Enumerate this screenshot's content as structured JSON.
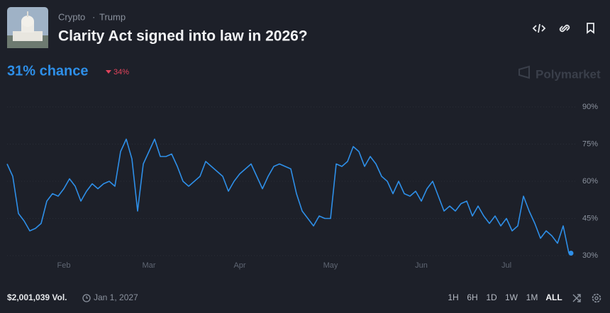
{
  "header": {
    "tags": [
      "Crypto",
      "Trump"
    ],
    "title": "Clarity Act signed into law in 2026?",
    "chance": "31% chance",
    "change": "34%",
    "brand": "Polymarket"
  },
  "chart_data": {
    "type": "line",
    "color": "#2e8fe8",
    "categories": [
      null,
      null,
      null,
      null,
      null,
      null,
      null,
      null,
      null,
      null,
      "Feb",
      null,
      null,
      null,
      null,
      null,
      null,
      null,
      null,
      null,
      null,
      null,
      null,
      null,
      null,
      "Mar",
      null,
      null,
      null,
      null,
      null,
      null,
      null,
      null,
      null,
      null,
      null,
      null,
      null,
      null,
      null,
      "Apr",
      null,
      null,
      null,
      null,
      null,
      null,
      null,
      null,
      null,
      null,
      null,
      null,
      null,
      null,
      null,
      "May",
      null,
      null,
      null,
      null,
      null,
      null,
      null,
      null,
      null,
      null,
      null,
      null,
      null,
      null,
      null,
      "Jun",
      null,
      null,
      null,
      null,
      null,
      null,
      null,
      null,
      null,
      null,
      null,
      null,
      null,
      null,
      "Jul",
      null,
      null,
      null,
      null,
      null,
      null,
      null,
      null,
      null,
      null,
      null
    ],
    "values": [
      67,
      62,
      47,
      44,
      40,
      41,
      43,
      52,
      55,
      54,
      57,
      61,
      58,
      52,
      56,
      59,
      57,
      59,
      60,
      58,
      72,
      77,
      69,
      48,
      67,
      72,
      77,
      70,
      70,
      71,
      66,
      60,
      58,
      60,
      62,
      68,
      66,
      64,
      62,
      56,
      60,
      63,
      65,
      67,
      62,
      57,
      62,
      66,
      67,
      66,
      65,
      55,
      48,
      45,
      42,
      46,
      45,
      45,
      67,
      66,
      68,
      74,
      72,
      66,
      70,
      67,
      62,
      60,
      55,
      60,
      55,
      54,
      56,
      52,
      57,
      60,
      54,
      48,
      50,
      48,
      51,
      52,
      46,
      50,
      46,
      43,
      46,
      42,
      45,
      40,
      42,
      54,
      48,
      43,
      37,
      40,
      38,
      35,
      42,
      31
    ],
    "ylim": [
      27,
      93
    ],
    "yticks": [
      {
        "value": 30,
        "label": "30%"
      },
      {
        "value": 45,
        "label": "45%"
      },
      {
        "value": 60,
        "label": "60%"
      },
      {
        "value": 75,
        "label": "75%"
      },
      {
        "value": 90,
        "label": "90%"
      }
    ],
    "grid": true
  },
  "footer": {
    "volume": "$2,001,039 Vol.",
    "end_date": "Jan 1, 2027",
    "ranges": [
      "1H",
      "6H",
      "1D",
      "1W",
      "1M",
      "ALL"
    ],
    "active_range": "ALL"
  }
}
